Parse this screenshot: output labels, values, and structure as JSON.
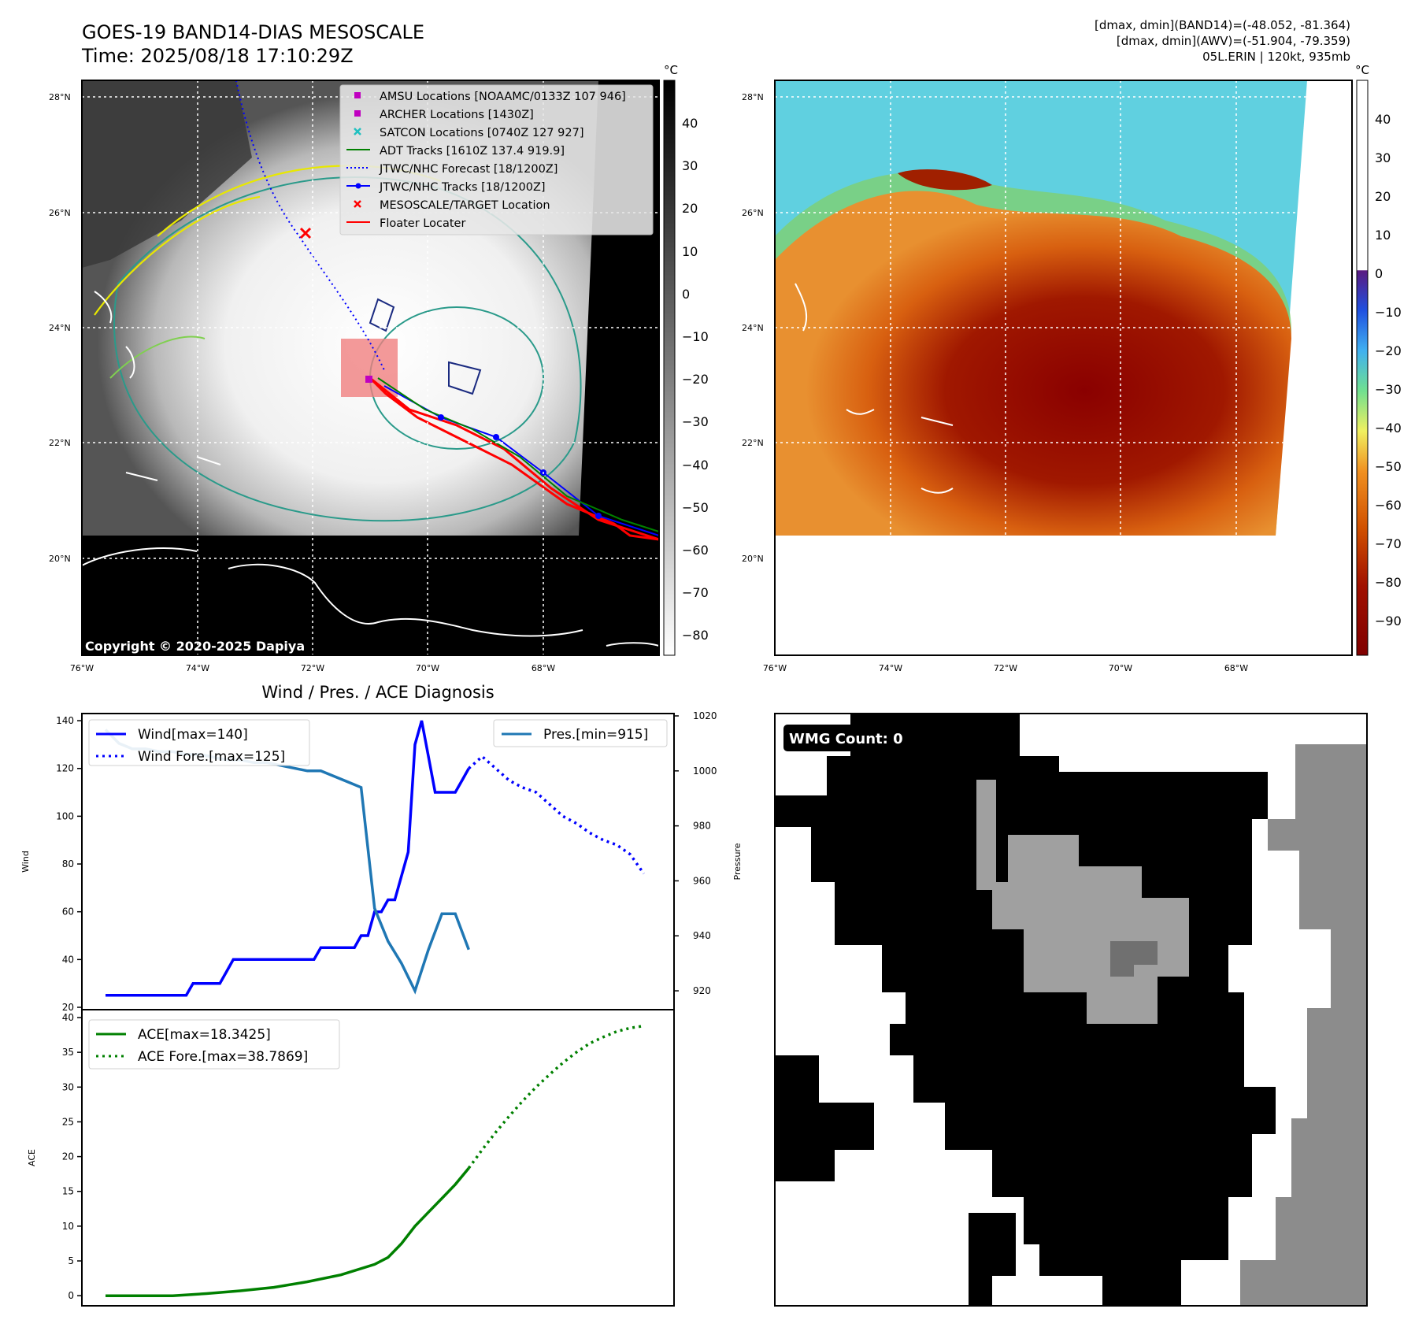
{
  "header": {
    "title_line1": "GOES-19 BAND14-DIAS MESOSCALE",
    "title_line2": "Time: 2025/08/18 17:10:29Z",
    "stats_line1": "[dmax, dmin](BAND14)=(-48.052, -81.364)",
    "stats_line2": "[dmax, dmin](AWV)=(-51.904, -79.359)",
    "stats_line3": "05L.ERIN | 120kt, 935mb"
  },
  "map_left": {
    "lat_labels": [
      "28°N",
      "26°N",
      "24°N",
      "22°N",
      "20°N"
    ],
    "lon_labels": [
      "76°W",
      "74°W",
      "72°W",
      "70°W",
      "68°W"
    ],
    "copyright": "Copyright © 2020-2025 Dapiya",
    "colorbar_unit": "°C",
    "colorbar_ticks": [
      "40",
      "30",
      "20",
      "10",
      "0",
      "−10",
      "−20",
      "−30",
      "−40",
      "−50",
      "−60",
      "−70",
      "−80"
    ],
    "legend": [
      {
        "label": "AMSU Locations [NOAAMC/0133Z 107 946]",
        "color": "#c000c0",
        "marker": "square"
      },
      {
        "label": "ARCHER Locations [1430Z]",
        "color": "#c000c0",
        "marker": "square"
      },
      {
        "label": "SATCON Locations [0740Z 127 927]",
        "color": "#20c0c0",
        "marker": "x"
      },
      {
        "label": "ADT Tracks [1610Z 137.4 919.9]",
        "color": "#008000",
        "marker": "line"
      },
      {
        "label": "JTWC/NHC Forecast [18/1200Z]",
        "color": "#0000ff",
        "marker": "dotted"
      },
      {
        "label": "JTWC/NHC Tracks [18/1200Z]",
        "color": "#0000ff",
        "marker": "line-dot"
      },
      {
        "label": "MESOSCALE/TARGET Location",
        "color": "#ff0000",
        "marker": "x"
      },
      {
        "label": "Floater Locater",
        "color": "#ff0000",
        "marker": "line"
      }
    ]
  },
  "map_right": {
    "lat_labels": [
      "28°N",
      "26°N",
      "24°N",
      "22°N",
      "20°N"
    ],
    "lon_labels": [
      "76°W",
      "74°W",
      "72°W",
      "70°W",
      "68°W"
    ],
    "colorbar_unit": "°C",
    "colorbar_ticks": [
      "40",
      "30",
      "20",
      "10",
      "0",
      "−10",
      "−20",
      "−30",
      "−40",
      "−50",
      "−60",
      "−70",
      "−80",
      "−90"
    ]
  },
  "wmg": {
    "label": "WMG Count: 0"
  },
  "chart_data": [
    {
      "type": "line",
      "title": "Wind / Pres. / ACE Diagnosis",
      "ylabel": "Wind",
      "ylabel_right": "Pressure",
      "ylim": [
        20,
        142
      ],
      "ylim_right": [
        914,
        1020
      ],
      "yticks": [
        20,
        40,
        60,
        80,
        100,
        120,
        140
      ],
      "yticks_right": [
        920,
        940,
        960,
        980,
        1000,
        1020
      ],
      "series": [
        {
          "name": "Wind[max=140]",
          "axis": "left",
          "color": "#0000ff",
          "style": "solid",
          "x": [
            0,
            1,
            2,
            3,
            4,
            5,
            6,
            7,
            8,
            9,
            10,
            11,
            12,
            13,
            14,
            15,
            16,
            17,
            18,
            19,
            20,
            21,
            22,
            23,
            24,
            25,
            26,
            27,
            28,
            29,
            30,
            31,
            32,
            33,
            34,
            35,
            36,
            37,
            38,
            39,
            40,
            41,
            42,
            43,
            44,
            45,
            46,
            47,
            48,
            49,
            50,
            51,
            52,
            53,
            54
          ],
          "values": [
            25,
            25,
            25,
            25,
            25,
            25,
            25,
            25,
            25,
            25,
            25,
            25,
            25,
            30,
            30,
            30,
            30,
            30,
            35,
            40,
            40,
            40,
            40,
            40,
            40,
            40,
            40,
            40,
            40,
            40,
            40,
            40,
            45,
            45,
            45,
            45,
            45,
            45,
            50,
            50,
            60,
            60,
            65,
            65,
            75,
            85,
            130,
            140,
            125,
            110,
            110,
            110,
            110,
            115,
            120
          ]
        },
        {
          "name": "Wind Fore.[max=125]",
          "axis": "left",
          "color": "#0000ff",
          "style": "dotted",
          "x": [
            54,
            56,
            58,
            60,
            62,
            64,
            66,
            68,
            70,
            72,
            74,
            76,
            78,
            80
          ],
          "values": [
            120,
            125,
            120,
            115,
            112,
            110,
            105,
            100,
            97,
            93,
            90,
            88,
            84,
            76
          ]
        },
        {
          "name": "Pres.[min=915]",
          "axis": "right",
          "color": "#1f77b4",
          "style": "solid",
          "x": [
            0,
            2,
            4,
            6,
            8,
            10,
            12,
            14,
            16,
            18,
            20,
            22,
            24,
            26,
            28,
            30,
            32,
            34,
            36,
            38,
            40,
            42,
            44,
            46,
            48,
            50,
            52,
            54
          ],
          "values": [
            1015,
            1010,
            1008,
            1008,
            1007,
            1007,
            1006,
            1006,
            1005,
            1004,
            1004,
            1003,
            1003,
            1002,
            1001,
            1000,
            1000,
            998,
            996,
            994,
            950,
            938,
            930,
            920,
            935,
            948,
            948,
            935
          ]
        }
      ],
      "legend_left": "top-left",
      "legend_right": "top-right"
    },
    {
      "type": "line",
      "ylabel": "ACE",
      "ylim": [
        -1,
        40
      ],
      "yticks": [
        0,
        5,
        10,
        15,
        20,
        25,
        30,
        35,
        40
      ],
      "series": [
        {
          "name": "ACE[max=18.3425]",
          "color": "#008000",
          "style": "solid",
          "x": [
            0,
            5,
            10,
            15,
            20,
            25,
            30,
            35,
            40,
            42,
            44,
            46,
            48,
            50,
            52,
            54
          ],
          "values": [
            0,
            0,
            0,
            0.3,
            0.7,
            1.2,
            2.0,
            3.0,
            4.5,
            5.5,
            7.5,
            10.0,
            12.0,
            14.0,
            16.0,
            18.34
          ]
        },
        {
          "name": "ACE Fore.[max=38.7869]",
          "color": "#008000",
          "style": "dotted",
          "x": [
            54,
            56,
            58,
            60,
            62,
            64,
            66,
            68,
            70,
            72,
            74,
            76,
            78,
            80
          ],
          "values": [
            18.34,
            21.0,
            23.5,
            25.8,
            28.0,
            30.0,
            31.8,
            33.5,
            35.0,
            36.3,
            37.2,
            38.0,
            38.5,
            38.79
          ]
        }
      ],
      "legend": "top-left"
    }
  ]
}
